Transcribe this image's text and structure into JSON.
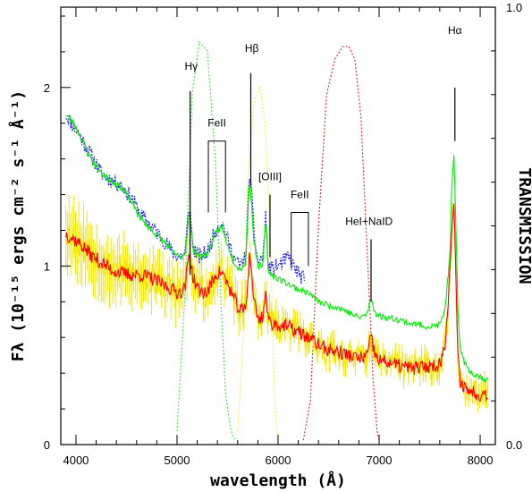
{
  "chart_data": {
    "type": "line",
    "xlabel": "wavelength (Å)",
    "ylabel": "Fλ (10⁻¹⁵ ergs cm⁻² s⁻¹ Å⁻¹)",
    "y2label": "TRANSMISSION",
    "xlim": [
      3850,
      8150
    ],
    "ylim": [
      0,
      2.45
    ],
    "y2lim": [
      0,
      1
    ],
    "x_ticks": [
      4000,
      5000,
      6000,
      7000,
      8000
    ],
    "x_tick_labels": [
      "4000",
      "5000",
      "6000",
      "7000",
      "8000"
    ],
    "y_ticks": [
      0,
      1,
      2
    ],
    "y_tick_labels": [
      "0",
      "1",
      "2"
    ],
    "y2_ticks": [
      0,
      1
    ],
    "y2_tick_labels": [
      "0.0",
      "1.0"
    ],
    "grid": false,
    "spectra": [
      {
        "color": "#2222ee",
        "style": "dotted",
        "noise": 0.045,
        "seed": 11,
        "x": [
          3900,
          3980,
          4050,
          4150,
          4250,
          4350,
          4450,
          4550,
          4650,
          4750,
          4850,
          4950,
          5020,
          5080,
          5120,
          5160,
          5220,
          5300,
          5380,
          5440,
          5500,
          5560,
          5620,
          5680,
          5720,
          5760,
          5800,
          5850,
          5880,
          5900,
          5940,
          5990,
          6050,
          6100,
          6150,
          6200,
          6260
        ],
        "y": [
          1.85,
          1.78,
          1.72,
          1.62,
          1.52,
          1.48,
          1.45,
          1.38,
          1.28,
          1.22,
          1.16,
          1.08,
          1.05,
          1.07,
          1.35,
          1.1,
          1.05,
          1.08,
          1.2,
          1.25,
          1.15,
          1.05,
          1.0,
          1.05,
          1.55,
          1.2,
          1.02,
          1.05,
          1.3,
          1.0,
          0.98,
          1.0,
          1.02,
          1.05,
          1.0,
          0.96,
          0.92
        ]
      },
      {
        "color": "#00ee00",
        "style": "solid",
        "noise": 0.018,
        "seed": 23,
        "x": [
          3900,
          3980,
          4050,
          4150,
          4250,
          4350,
          4450,
          4550,
          4650,
          4750,
          4850,
          4950,
          5020,
          5080,
          5120,
          5160,
          5220,
          5300,
          5380,
          5440,
          5500,
          5560,
          5620,
          5680,
          5720,
          5760,
          5800,
          5850,
          5880,
          5900,
          5940,
          6000,
          6100,
          6200,
          6300,
          6400,
          6500,
          6600,
          6700,
          6800,
          6880,
          6920,
          6960,
          7000,
          7100,
          7200,
          7300,
          7400,
          7500,
          7600,
          7650,
          7700,
          7720,
          7740,
          7760,
          7780,
          7800,
          7850,
          7900,
          8000,
          8080
        ],
        "y": [
          1.85,
          1.8,
          1.72,
          1.6,
          1.52,
          1.48,
          1.44,
          1.36,
          1.26,
          1.2,
          1.15,
          1.08,
          1.05,
          1.07,
          1.3,
          1.1,
          1.05,
          1.07,
          1.18,
          1.22,
          1.12,
          1.03,
          0.98,
          1.02,
          1.5,
          1.15,
          1.0,
          1.0,
          1.28,
          0.98,
          0.95,
          0.93,
          0.9,
          0.87,
          0.85,
          0.8,
          0.78,
          0.77,
          0.74,
          0.71,
          0.73,
          0.82,
          0.74,
          0.72,
          0.71,
          0.7,
          0.68,
          0.67,
          0.66,
          0.67,
          0.75,
          1.05,
          1.45,
          1.62,
          1.2,
          0.75,
          0.55,
          0.45,
          0.41,
          0.38,
          0.36
        ]
      },
      {
        "color": "#ff0000",
        "style": "solid",
        "noise": 0.04,
        "seed": 37,
        "x": [
          3900,
          3980,
          4050,
          4150,
          4250,
          4350,
          4450,
          4550,
          4650,
          4750,
          4850,
          4950,
          5020,
          5080,
          5120,
          5160,
          5220,
          5300,
          5380,
          5440,
          5500,
          5560,
          5620,
          5680,
          5720,
          5760,
          5800,
          5850,
          5880,
          5900,
          5940,
          6000,
          6100,
          6200,
          6300,
          6400,
          6500,
          6600,
          6700,
          6800,
          6880,
          6920,
          6960,
          7000,
          7100,
          7200,
          7300,
          7400,
          7500,
          7600,
          7650,
          7700,
          7720,
          7740,
          7760,
          7780,
          7800,
          7850,
          7900,
          8000,
          8080
        ],
        "y": [
          1.18,
          1.15,
          1.12,
          1.06,
          1.02,
          0.98,
          0.96,
          0.95,
          0.95,
          0.93,
          0.9,
          0.87,
          0.85,
          0.88,
          1.08,
          0.93,
          0.86,
          0.85,
          0.95,
          0.97,
          0.9,
          0.82,
          0.75,
          0.76,
          1.08,
          0.82,
          0.7,
          0.72,
          0.86,
          0.7,
          0.68,
          0.67,
          0.66,
          0.63,
          0.6,
          0.56,
          0.53,
          0.52,
          0.5,
          0.48,
          0.5,
          0.6,
          0.5,
          0.47,
          0.46,
          0.44,
          0.43,
          0.43,
          0.44,
          0.45,
          0.55,
          0.95,
          1.22,
          1.35,
          0.9,
          0.5,
          0.36,
          0.32,
          0.3,
          0.28,
          0.29
        ]
      },
      {
        "color": "#f2e600",
        "style": "solid",
        "noise": 0.09,
        "seed": 53,
        "errorbars": true,
        "x": [
          3900,
          3980,
          4050,
          4150,
          4250,
          4350,
          4450,
          4550,
          4650,
          4750,
          4850,
          4950,
          5020,
          5080,
          5120,
          5160,
          5220,
          5300,
          5380,
          5440,
          5500,
          5560,
          5620,
          5680,
          5720,
          5760,
          5800,
          5850,
          5880,
          5900,
          5940,
          6000,
          6100,
          6200,
          6300,
          6400,
          6500,
          6600,
          6700,
          6800,
          6880,
          6920,
          6960,
          7000,
          7100,
          7200,
          7300,
          7400,
          7500,
          7600,
          7650,
          7700,
          7720,
          7740,
          7760,
          7780,
          7800,
          7850,
          7900,
          8000,
          8080
        ],
        "y": [
          1.2,
          1.16,
          1.12,
          1.08,
          1.03,
          0.99,
          0.97,
          0.96,
          0.95,
          0.93,
          0.9,
          0.87,
          0.85,
          0.88,
          1.05,
          0.93,
          0.86,
          0.85,
          0.95,
          0.96,
          0.9,
          0.82,
          0.76,
          0.77,
          1.05,
          0.82,
          0.71,
          0.72,
          0.85,
          0.71,
          0.68,
          0.67,
          0.66,
          0.63,
          0.6,
          0.56,
          0.53,
          0.52,
          0.5,
          0.48,
          0.5,
          0.58,
          0.5,
          0.47,
          0.46,
          0.44,
          0.43,
          0.43,
          0.44,
          0.45,
          0.54,
          0.92,
          1.2,
          1.32,
          0.88,
          0.5,
          0.36,
          0.32,
          0.3,
          0.28,
          0.29
        ]
      }
    ],
    "filters": [
      {
        "color": "#44dd44",
        "x": [
          5000,
          5080,
          5150,
          5220,
          5300,
          5380,
          5440,
          5480,
          5520,
          5550,
          5580
        ],
        "y": [
          0.03,
          0.35,
          0.8,
          0.92,
          0.9,
          0.65,
          0.3,
          0.12,
          0.05,
          0.02,
          0.01
        ]
      },
      {
        "color": "#eeee44",
        "x": [
          5600,
          5650,
          5700,
          5760,
          5820,
          5870,
          5910,
          5940,
          5960,
          5980,
          6000
        ],
        "y": [
          0.03,
          0.22,
          0.6,
          0.78,
          0.82,
          0.74,
          0.55,
          0.32,
          0.15,
          0.05,
          0.01
        ]
      },
      {
        "color": "#dd2222",
        "x": [
          6250,
          6320,
          6400,
          6480,
          6560,
          6640,
          6700,
          6760,
          6820,
          6880,
          6940,
          6980,
          7000
        ],
        "y": [
          0.01,
          0.1,
          0.5,
          0.8,
          0.88,
          0.91,
          0.91,
          0.88,
          0.75,
          0.45,
          0.15,
          0.03,
          0.01
        ]
      }
    ],
    "annotations": [
      {
        "text": "Hγ",
        "type": "line",
        "x": 5130,
        "y_from": 0.95,
        "y_to": 1.98,
        "tx": 5140,
        "ty": 2.1
      },
      {
        "text": "FeII",
        "type": "bracket",
        "x1": 5310,
        "x2": 5480,
        "y_top": 1.7,
        "y_bottom": 1.3,
        "ty": 1.78
      },
      {
        "text": "Hβ",
        "type": "line",
        "x": 5730,
        "y_from": 1.45,
        "y_to": 2.08,
        "tx": 5740,
        "ty": 2.2
      },
      {
        "text": "[OIII]",
        "type": "line",
        "x": 5920,
        "y_from": 1.05,
        "y_to": 1.4,
        "tx": 5920,
        "ty": 1.48
      },
      {
        "text": "FeII",
        "type": "bracket",
        "x1": 6130,
        "x2": 6300,
        "y_top": 1.3,
        "y_bottom": 1.0,
        "ty": 1.38
      },
      {
        "text": "HeI+NaID",
        "type": "line",
        "x": 6920,
        "y_from": 0.8,
        "y_to": 1.15,
        "tx": 6900,
        "ty": 1.23
      },
      {
        "text": "Hα",
        "type": "line",
        "x": 7750,
        "y_from": 1.7,
        "y_to": 2.0,
        "tx": 7750,
        "ty": 2.3
      }
    ]
  }
}
